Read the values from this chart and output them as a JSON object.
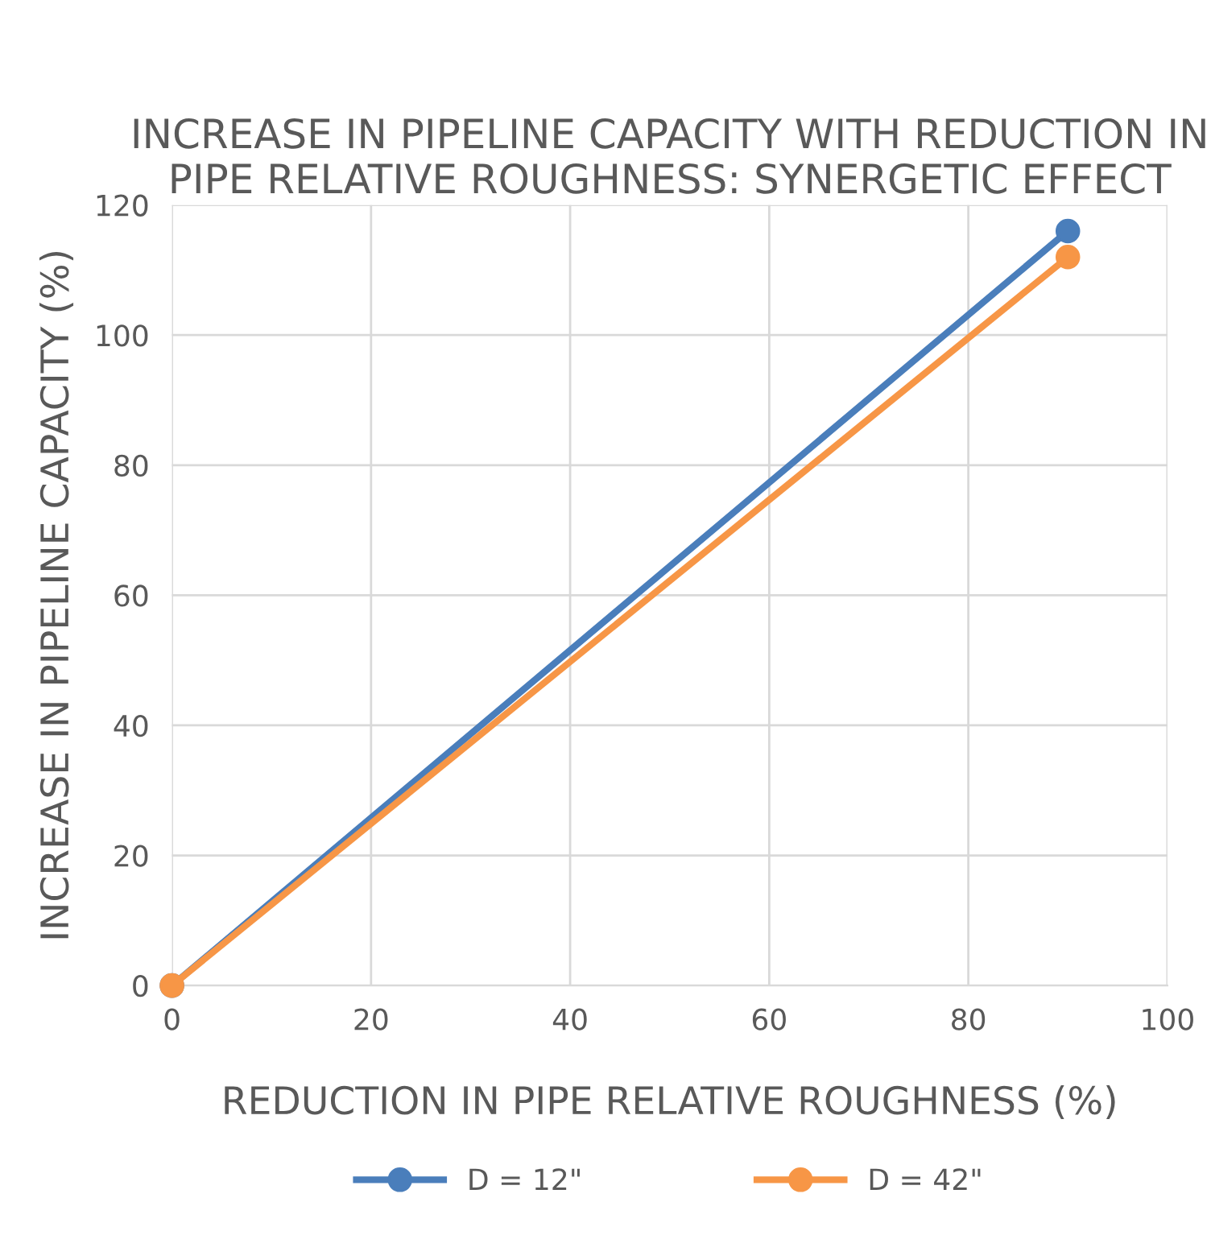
{
  "chart_data": {
    "type": "line",
    "title": "INCREASE IN PIPELINE CAPACITY WITH REDUCTION IN PIPE RELATIVE ROUGHNESS: SYNERGETIC EFFECT",
    "xlabel": "REDUCTION IN PIPE RELATIVE ROUGHNESS (%)",
    "ylabel": "INCREASE IN PIPELINE CAPACITY (%)",
    "x": [
      0,
      90
    ],
    "series": [
      {
        "name": "D = 12\"",
        "color": "#4a7ebb",
        "values": [
          0,
          116
        ]
      },
      {
        "name": "D = 42\"",
        "color": "#f79646",
        "values": [
          0,
          112
        ]
      }
    ],
    "xlim": [
      0,
      100
    ],
    "ylim": [
      0,
      120
    ],
    "xticks": [
      0,
      20,
      40,
      60,
      80,
      100
    ],
    "yticks": [
      0,
      20,
      40,
      60,
      80,
      100,
      120
    ],
    "grid": true,
    "legend": "bottom",
    "marker": "circle",
    "line_style": "solid"
  }
}
